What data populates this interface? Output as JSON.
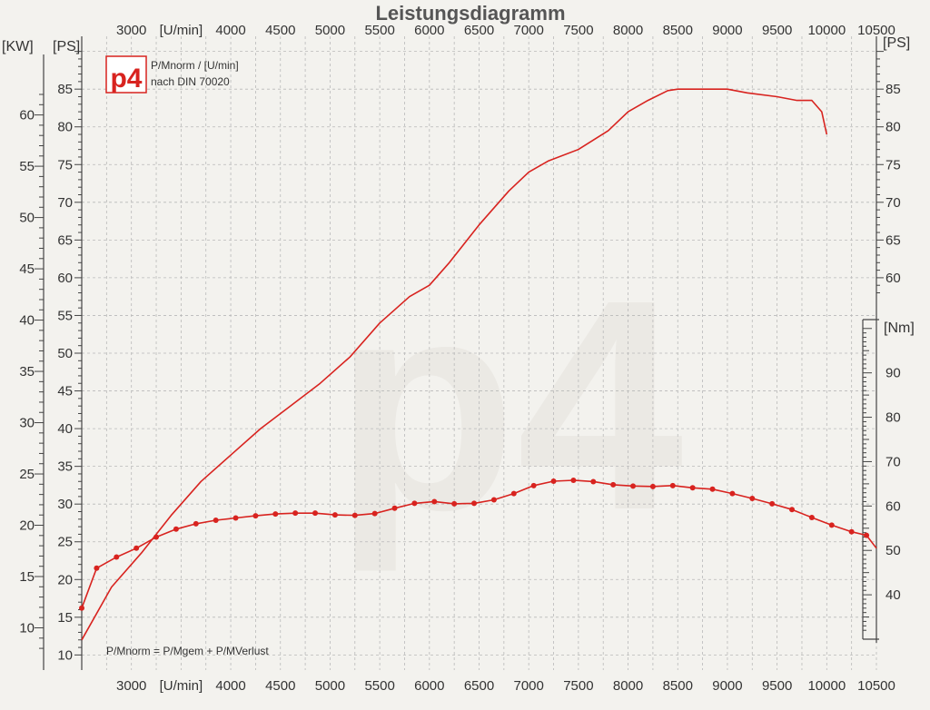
{
  "logo": {
    "text": "p4"
  },
  "colors": {
    "background": "#f3f2ee",
    "grid": "#b9b9b9",
    "axis": "#444444",
    "curve": "#d8231f",
    "logo": "#d8231f",
    "watermark": "#e6e2dd"
  },
  "chart_data": {
    "type": "line",
    "title": "Leistungsdiagramm",
    "legend_lines": [
      "P/Mnorm / [U/min]",
      "nach DIN 70020"
    ],
    "formula": "P/Mnorm = P/Mgem + P/MVerlust",
    "x_axis": {
      "unit": "[U/min]",
      "range": [
        2500,
        10500
      ],
      "ticks": [
        3000,
        3500,
        4000,
        4500,
        5000,
        5500,
        6000,
        6500,
        7000,
        7500,
        8000,
        8500,
        9000,
        9500,
        10000,
        10500
      ],
      "top_labels": [
        "3000",
        "[U/min]",
        "4000",
        "4500",
        "5000",
        "5500",
        "6000",
        "6500",
        "7000",
        "7500",
        "8000",
        "8500",
        "9000",
        "9500",
        "10000",
        "10500"
      ],
      "bottom_labels": [
        "3000",
        "[U/min]",
        "4000",
        "4500",
        "5000",
        "5500",
        "6000",
        "6500",
        "7000",
        "7500",
        "8000",
        "8500",
        "9000",
        "9500",
        "10000",
        "10500"
      ]
    },
    "y_axis_ps": {
      "unit": "[PS]",
      "range": [
        8,
        92
      ],
      "ticks": [
        10,
        15,
        20,
        25,
        30,
        35,
        40,
        45,
        50,
        55,
        60,
        65,
        70,
        75,
        80,
        85
      ]
    },
    "y_axis_kw": {
      "unit": "[KW]",
      "ticks": [
        10,
        15,
        20,
        25,
        30,
        35,
        40,
        45,
        50,
        55,
        60
      ]
    },
    "y_axis_ps_right": {
      "unit": "[PS]",
      "ticks": [
        60,
        65,
        70,
        75,
        80,
        85
      ]
    },
    "y_axis_nm": {
      "unit": "[Nm]",
      "range": [
        30,
        102
      ],
      "ticks": [
        40,
        50,
        60,
        70,
        80,
        90
      ]
    },
    "series": [
      {
        "axis": "ps",
        "markers": false,
        "points": [
          [
            2500,
            12
          ],
          [
            2800,
            19
          ],
          [
            3100,
            23.5
          ],
          [
            3400,
            28.5
          ],
          [
            3700,
            33
          ],
          [
            4000,
            36.5
          ],
          [
            4300,
            40
          ],
          [
            4600,
            43
          ],
          [
            4900,
            46
          ],
          [
            5200,
            49.5
          ],
          [
            5500,
            54
          ],
          [
            5800,
            57.5
          ],
          [
            6000,
            59
          ],
          [
            6200,
            62
          ],
          [
            6500,
            67
          ],
          [
            6800,
            71.5
          ],
          [
            7000,
            74
          ],
          [
            7200,
            75.5
          ],
          [
            7500,
            77
          ],
          [
            7800,
            79.5
          ],
          [
            8000,
            82
          ],
          [
            8200,
            83.5
          ],
          [
            8400,
            84.8
          ],
          [
            8500,
            85
          ],
          [
            9000,
            85
          ],
          [
            9200,
            84.5
          ],
          [
            9500,
            84
          ],
          [
            9700,
            83.5
          ],
          [
            9850,
            83.5
          ],
          [
            9950,
            82
          ],
          [
            10000,
            79
          ]
        ]
      },
      {
        "axis": "nm",
        "markers": true,
        "points": [
          [
            2500,
            37
          ],
          [
            2650,
            46
          ],
          [
            2850,
            48.5
          ],
          [
            3050,
            50.5
          ],
          [
            3250,
            53
          ],
          [
            3450,
            54.8
          ],
          [
            3650,
            56
          ],
          [
            3850,
            56.8
          ],
          [
            4050,
            57.3
          ],
          [
            4250,
            57.8
          ],
          [
            4450,
            58.2
          ],
          [
            4650,
            58.4
          ],
          [
            4850,
            58.4
          ],
          [
            5050,
            58
          ],
          [
            5250,
            57.9
          ],
          [
            5450,
            58.3
          ],
          [
            5650,
            59.5
          ],
          [
            5850,
            60.6
          ],
          [
            6050,
            61
          ],
          [
            6250,
            60.5
          ],
          [
            6450,
            60.6
          ],
          [
            6650,
            61.4
          ],
          [
            6850,
            62.8
          ],
          [
            7050,
            64.6
          ],
          [
            7250,
            65.6
          ],
          [
            7450,
            65.8
          ],
          [
            7650,
            65.5
          ],
          [
            7850,
            64.8
          ],
          [
            8050,
            64.5
          ],
          [
            8250,
            64.4
          ],
          [
            8450,
            64.6
          ],
          [
            8650,
            64.1
          ],
          [
            8850,
            63.8
          ],
          [
            9050,
            62.8
          ],
          [
            9250,
            61.7
          ],
          [
            9450,
            60.5
          ],
          [
            9650,
            59.2
          ],
          [
            9850,
            57.4
          ],
          [
            10050,
            55.7
          ],
          [
            10250,
            54.2
          ],
          [
            10400,
            53.4
          ],
          [
            10500,
            50.5
          ]
        ]
      }
    ]
  }
}
